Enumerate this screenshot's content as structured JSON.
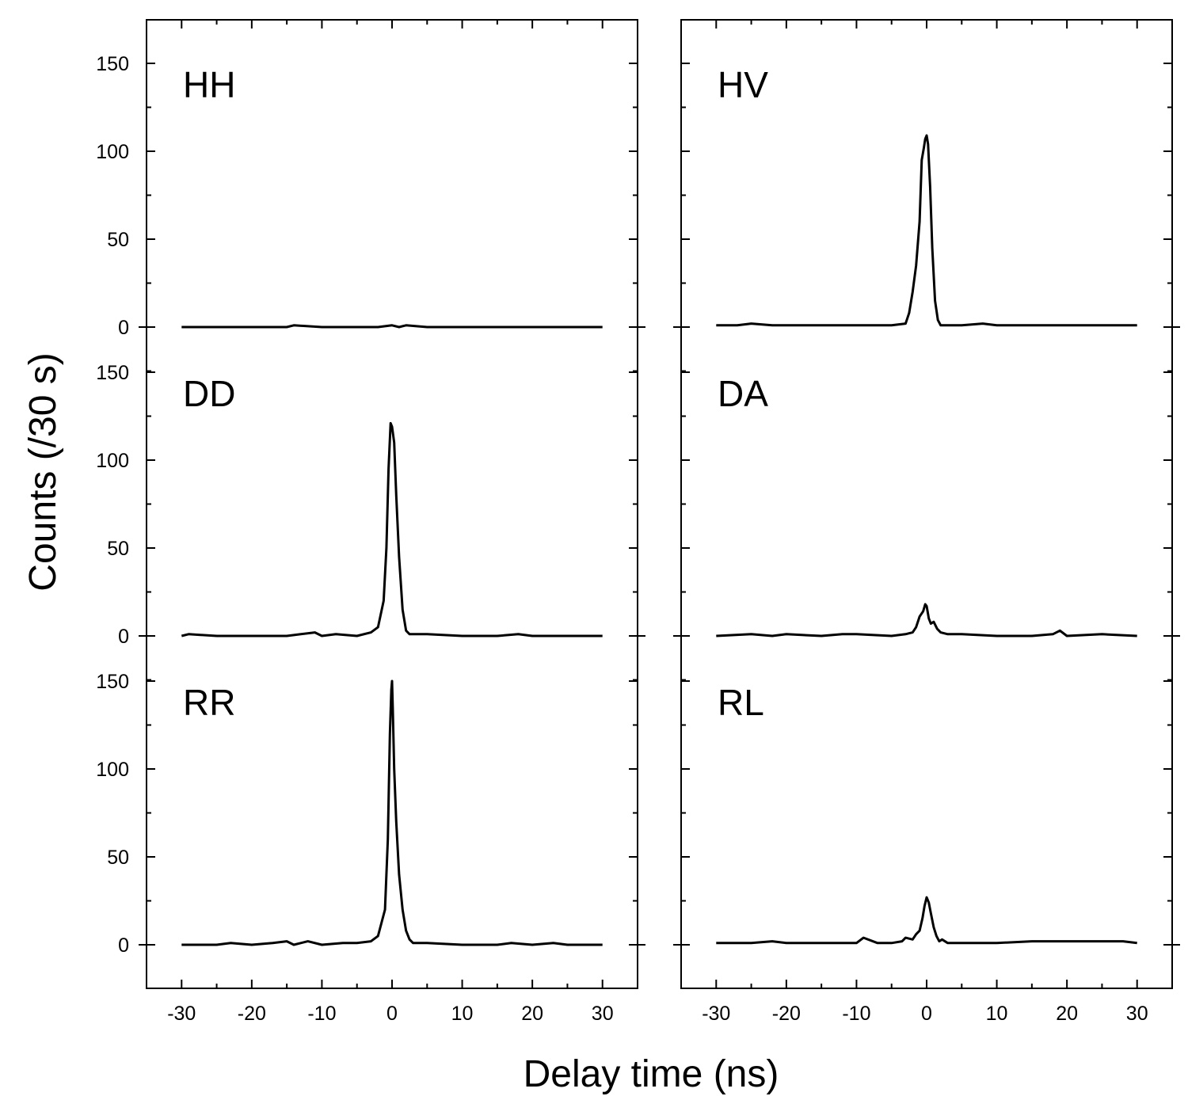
{
  "chart_data": {
    "type": "line",
    "figure": {
      "xlabel": "Delay time (ns)",
      "ylabel": "Counts (/30 s)"
    },
    "columns": [
      {
        "xlim": [
          -35,
          35
        ],
        "xticks": [
          -30,
          -20,
          -10,
          0,
          10,
          20,
          30
        ],
        "xtick_labels": [
          "-30",
          "-20",
          "-10",
          "0",
          "10",
          "20",
          "30"
        ],
        "ytick_labels": [
          "150",
          "100",
          "50",
          "0"
        ],
        "show_ytick_labels": true
      },
      {
        "xlim": [
          -35,
          35
        ],
        "xticks": [
          -30,
          -20,
          -10,
          0,
          10,
          20,
          30
        ],
        "xtick_labels": [
          "-30",
          "-20",
          "-10",
          "0",
          "10",
          "20",
          "30"
        ],
        "ytick_labels": [
          "150",
          "100",
          "50",
          "0"
        ],
        "show_ytick_labels": false
      }
    ],
    "ylim_per_row": [
      -25,
      175
    ],
    "yticks": [
      0,
      50,
      100,
      150
    ],
    "panels": [
      {
        "label": "HH",
        "column": 0,
        "row": 0,
        "x": [
          -30,
          -25,
          -20,
          -15,
          -14,
          -10,
          -5,
          -2,
          0,
          1,
          2,
          5,
          10,
          15,
          20,
          25,
          30
        ],
        "y": [
          0,
          0,
          0,
          0,
          1,
          0,
          0,
          0,
          1,
          0,
          1,
          0,
          0,
          0,
          0,
          0,
          0
        ]
      },
      {
        "label": "HV",
        "column": 1,
        "row": 0,
        "x": [
          -30,
          -27,
          -25,
          -22,
          -20,
          -15,
          -10,
          -5,
          -3,
          -2.5,
          -2,
          -1.5,
          -1,
          -0.7,
          -0.4,
          -0.2,
          0,
          0.2,
          0.5,
          0.8,
          1.2,
          1.6,
          2,
          2.5,
          3,
          5,
          8,
          10,
          15,
          20,
          25,
          30
        ],
        "y": [
          1,
          1,
          2,
          1,
          1,
          1,
          1,
          1,
          2,
          8,
          20,
          35,
          60,
          95,
          102,
          107,
          109,
          104,
          80,
          45,
          15,
          4,
          1,
          1,
          1,
          1,
          2,
          1,
          1,
          1,
          1,
          1
        ]
      },
      {
        "label": "DD",
        "column": 0,
        "row": 1,
        "x": [
          -30,
          -29,
          -25,
          -20,
          -15,
          -13,
          -11,
          -10,
          -8,
          -5,
          -3,
          -2,
          -1.2,
          -0.8,
          -0.5,
          -0.2,
          0,
          0.3,
          0.6,
          1,
          1.5,
          2,
          2.5,
          3,
          5,
          10,
          15,
          18,
          20,
          25,
          30
        ],
        "y": [
          0,
          1,
          0,
          0,
          0,
          1,
          2,
          0,
          1,
          0,
          2,
          5,
          20,
          50,
          95,
          121,
          119,
          110,
          80,
          45,
          15,
          3,
          1,
          1,
          1,
          0,
          0,
          1,
          0,
          0,
          0
        ]
      },
      {
        "label": "DA",
        "column": 1,
        "row": 1,
        "x": [
          -30,
          -25,
          -22,
          -20,
          -15,
          -12,
          -10,
          -5,
          -3,
          -2,
          -1.5,
          -1,
          -0.5,
          -0.2,
          0,
          0.3,
          0.6,
          1,
          1.5,
          2,
          3,
          5,
          10,
          15,
          18,
          19,
          20,
          25,
          30
        ],
        "y": [
          0,
          1,
          0,
          1,
          0,
          1,
          1,
          0,
          1,
          2,
          5,
          11,
          14,
          18,
          17,
          10,
          7,
          8,
          4,
          2,
          1,
          1,
          0,
          0,
          1,
          3,
          0,
          1,
          0
        ]
      },
      {
        "label": "RR",
        "column": 0,
        "row": 2,
        "x": [
          -30,
          -25,
          -23,
          -20,
          -17,
          -15,
          -14,
          -12,
          -10,
          -7,
          -5,
          -3,
          -2,
          -1,
          -0.6,
          -0.3,
          -0.1,
          0,
          0.1,
          0.3,
          0.6,
          1,
          1.5,
          2,
          2.5,
          3,
          5,
          10,
          15,
          17,
          20,
          23,
          25,
          30
        ],
        "y": [
          0,
          0,
          1,
          0,
          1,
          2,
          0,
          2,
          0,
          1,
          1,
          2,
          5,
          20,
          60,
          120,
          145,
          150,
          135,
          100,
          70,
          40,
          20,
          8,
          3,
          1,
          1,
          0,
          0,
          1,
          0,
          1,
          0,
          0
        ]
      },
      {
        "label": "RL",
        "column": 1,
        "row": 2,
        "x": [
          -30,
          -25,
          -22,
          -20,
          -15,
          -10,
          -9,
          -7,
          -5,
          -3.5,
          -3,
          -2,
          -1.5,
          -1,
          -0.6,
          -0.3,
          0,
          0.3,
          0.6,
          1,
          1.4,
          1.8,
          2.2,
          3,
          5,
          10,
          15,
          20,
          25,
          28,
          30
        ],
        "y": [
          1,
          1,
          2,
          1,
          1,
          1,
          4,
          1,
          1,
          2,
          4,
          3,
          6,
          8,
          15,
          22,
          27,
          24,
          18,
          10,
          5,
          2,
          3,
          1,
          1,
          1,
          2,
          2,
          2,
          2,
          1
        ]
      }
    ]
  }
}
